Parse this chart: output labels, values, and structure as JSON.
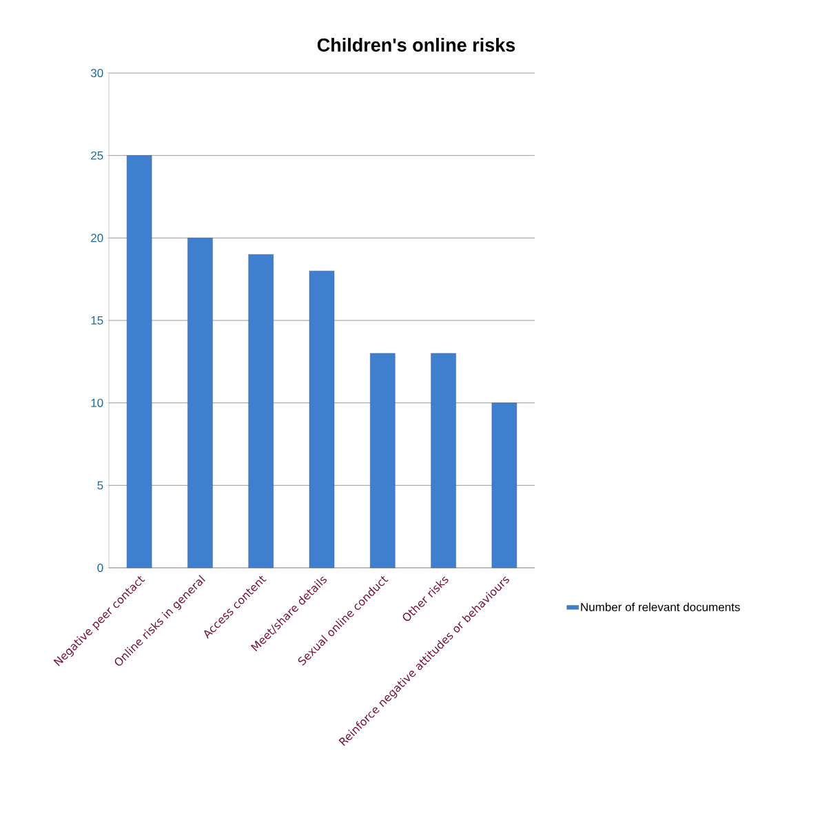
{
  "chart_data": {
    "type": "bar",
    "title": "Children's online risks",
    "categories": [
      "Negative peer contact",
      "Online risks in general",
      "Access content",
      "Meet/share details",
      "Sexual online conduct",
      "Other risks",
      "Reinforce negative attitudes or behaviours"
    ],
    "series": [
      {
        "name": "Number of relevant documents",
        "color": "#3f7fd0",
        "values": [
          25,
          20,
          19,
          18,
          13,
          13,
          10
        ]
      }
    ],
    "ylim": [
      0,
      30
    ],
    "yticks": [
      0,
      5,
      10,
      15,
      20,
      25,
      30
    ],
    "grid": "y",
    "legend": "right"
  }
}
